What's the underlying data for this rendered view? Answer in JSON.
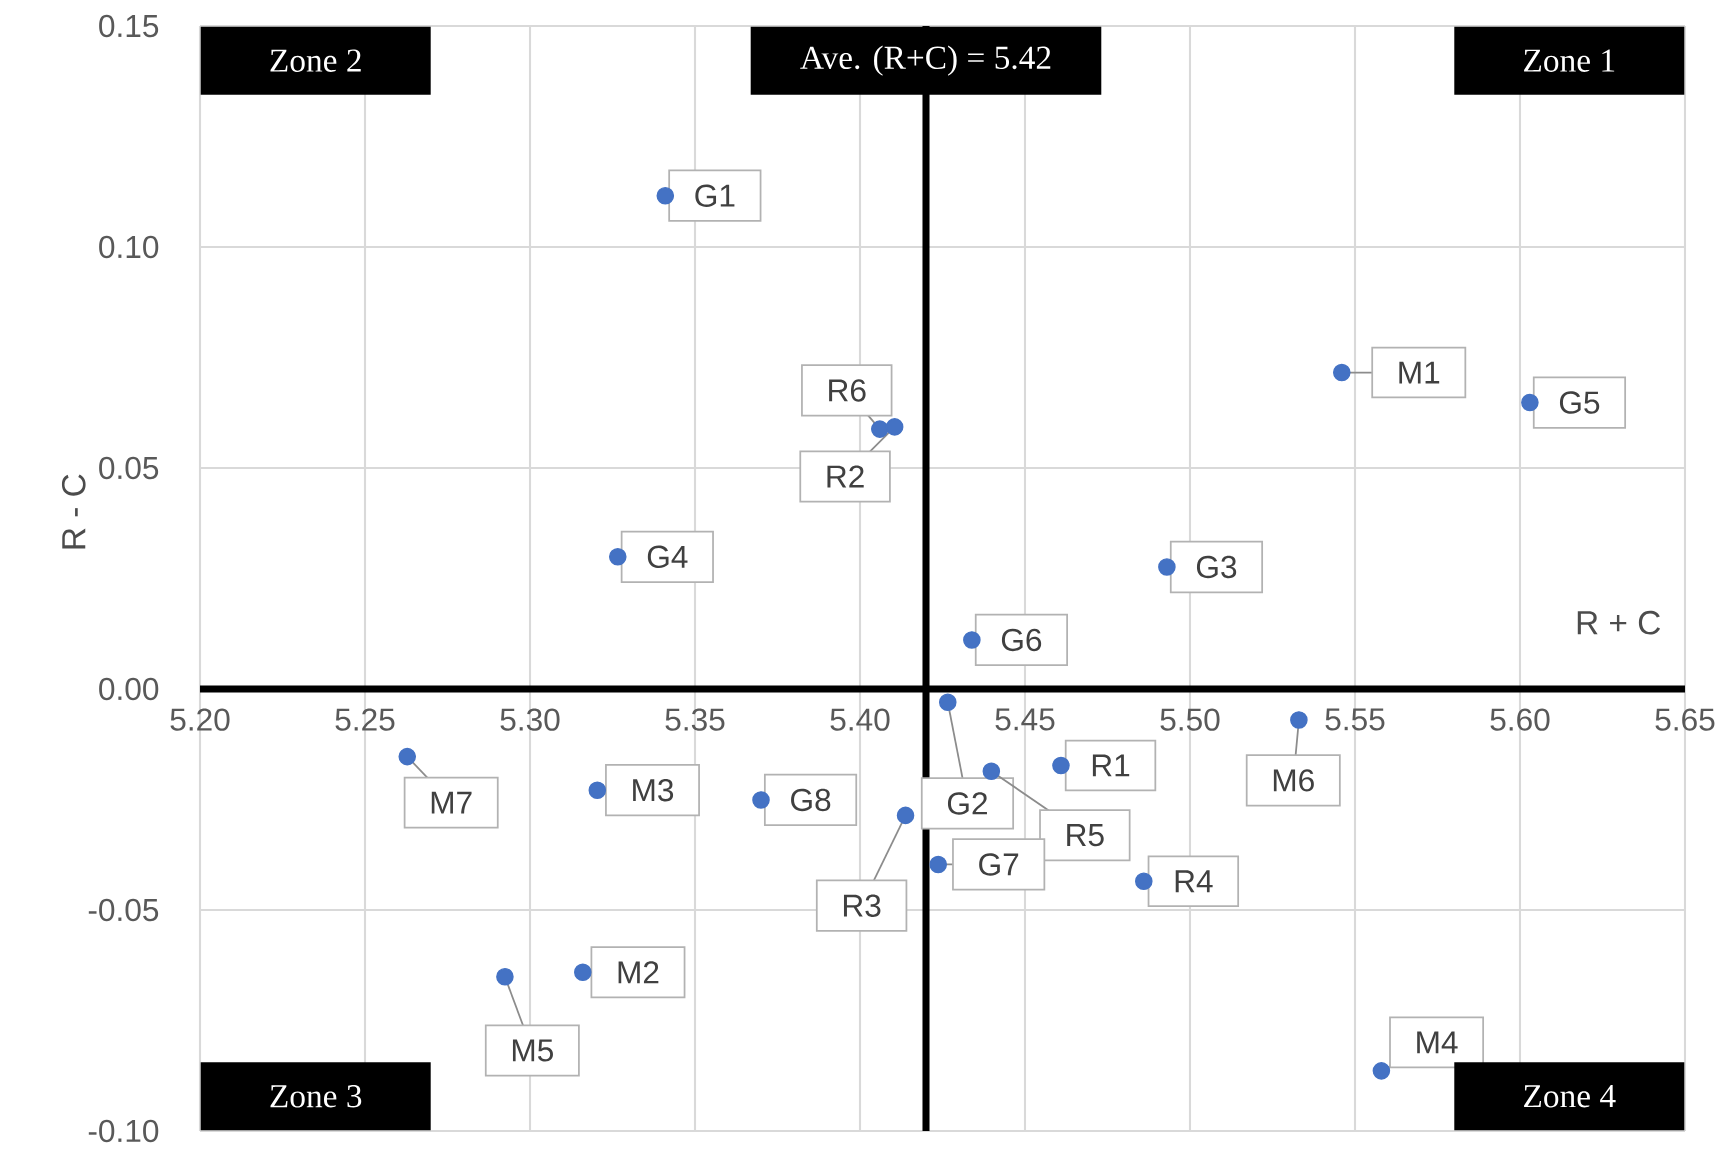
{
  "chart_data": {
    "type": "scatter",
    "xlabel": "R + C",
    "ylabel": "R - C",
    "xlim": [
      5.2,
      5.65
    ],
    "ylim": [
      -0.1,
      0.15
    ],
    "xticks": [
      {
        "value": 5.2,
        "label": "5.20"
      },
      {
        "value": 5.25,
        "label": "5.25"
      },
      {
        "value": 5.3,
        "label": "5.30"
      },
      {
        "value": 5.35,
        "label": "5.35"
      },
      {
        "value": 5.4,
        "label": "5.40"
      },
      {
        "value": 5.45,
        "label": "5.45"
      },
      {
        "value": 5.5,
        "label": "5.50"
      },
      {
        "value": 5.55,
        "label": "5.55"
      },
      {
        "value": 5.6,
        "label": "5.60"
      },
      {
        "value": 5.65,
        "label": "5.65"
      }
    ],
    "yticks": [
      {
        "value": -0.1,
        "label": "-0.10"
      },
      {
        "value": -0.05,
        "label": "-0.05"
      },
      {
        "value": 0,
        "label": "0.00"
      },
      {
        "value": 0.05,
        "label": "0.05"
      },
      {
        "value": 0.1,
        "label": "0.10"
      },
      {
        "value": 0.15,
        "label": "0.15"
      }
    ],
    "grid": true,
    "marker": "circle",
    "series": [
      {
        "color": "#4472c4",
        "x": [
          5.341,
          5.406,
          5.4105,
          5.546,
          5.603,
          5.3266,
          5.493,
          5.4339,
          5.4266,
          5.533,
          5.2628,
          5.4609,
          5.4398,
          5.3204,
          5.37,
          5.4138,
          5.4237,
          5.486,
          5.316,
          5.2924,
          5.558
        ],
        "values": [
          0.1116,
          0.0588,
          0.0593,
          0.0716,
          0.0648,
          0.0299,
          0.0276,
          0.0111,
          -0.003,
          -0.007,
          -0.0153,
          -0.0173,
          -0.0186,
          -0.0229,
          -0.0251,
          -0.0286,
          -0.0397,
          -0.0435,
          -0.0641,
          -0.0651,
          -0.0864
        ]
      }
    ],
    "ref_lines": [
      {
        "axis": "x",
        "value": 5.42,
        "label": "Ave. (R+C) = 5.42",
        "color": "#000000"
      }
    ],
    "annotations": [
      "Zone 2",
      "Zone 1",
      "Zone 3",
      "Zone 4",
      {
        "text": "G1",
        "x": 5.341,
        "y": 0.1116
      },
      {
        "text": "R6",
        "x": 5.406,
        "y": 0.0588
      },
      {
        "text": "R2",
        "x": 5.4105,
        "y": 0.0593
      },
      {
        "text": "M1",
        "x": 5.546,
        "y": 0.0716
      },
      {
        "text": "G5",
        "x": 5.603,
        "y": 0.0648
      },
      {
        "text": "G4",
        "x": 5.3266,
        "y": 0.0299
      },
      {
        "text": "G3",
        "x": 5.493,
        "y": 0.0276
      },
      {
        "text": "G6",
        "x": 5.4339,
        "y": 0.0111
      },
      {
        "text": "G2",
        "x": 5.4266,
        "y": -0.003
      },
      {
        "text": "M6",
        "x": 5.533,
        "y": -0.007
      },
      {
        "text": "M7",
        "x": 5.2628,
        "y": -0.0153
      },
      {
        "text": "R1",
        "x": 5.4609,
        "y": -0.0173
      },
      {
        "text": "R5",
        "x": 5.4398,
        "y": -0.0186
      },
      {
        "text": "M3",
        "x": 5.3204,
        "y": -0.0229
      },
      {
        "text": "G8",
        "x": 5.37,
        "y": -0.0251
      },
      {
        "text": "R3",
        "x": 5.4138,
        "y": -0.0286
      },
      {
        "text": "G7",
        "x": 5.4237,
        "y": -0.0397
      },
      {
        "text": "R4",
        "x": 5.486,
        "y": -0.0435
      },
      {
        "text": "M2",
        "x": 5.316,
        "y": -0.0641
      },
      {
        "text": "M5",
        "x": 5.2924,
        "y": -0.0651
      },
      {
        "text": "M4",
        "x": 5.558,
        "y": -0.0864
      }
    ]
  }
}
